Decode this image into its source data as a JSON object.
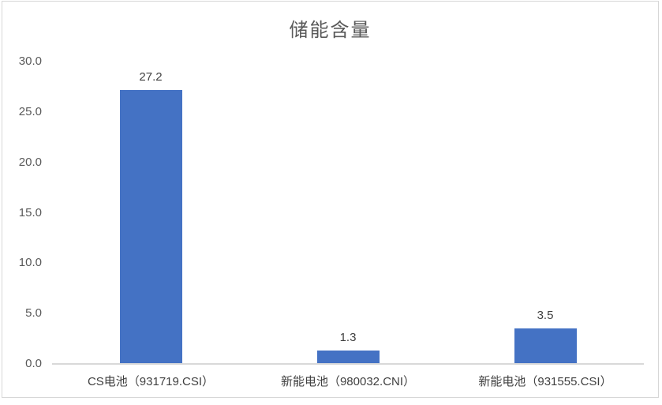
{
  "chart_data": {
    "type": "bar",
    "title": "储能含量",
    "categories": [
      "CS电池（931719.CSI）",
      "新能电池（980032.CNI）",
      "新能电池（931555.CSI）"
    ],
    "values": [
      27.2,
      1.3,
      3.5
    ],
    "value_labels": [
      "27.2",
      "1.3",
      "3.5"
    ],
    "y_ticks": [
      30.0,
      25.0,
      20.0,
      15.0,
      10.0,
      5.0,
      0.0
    ],
    "y_tick_labels": [
      "30.0",
      "25.0",
      "20.0",
      "15.0",
      "10.0",
      "5.0",
      "0.0"
    ],
    "ylim": [
      0,
      30
    ],
    "xlabel": "",
    "ylabel": "",
    "grid": false,
    "legend_position": "none",
    "bar_color": "#4472C4",
    "axis_line_color": "#D9D9D9",
    "title_color": "#595959",
    "tick_label_color": "#595959",
    "data_label_color": "#404040"
  }
}
